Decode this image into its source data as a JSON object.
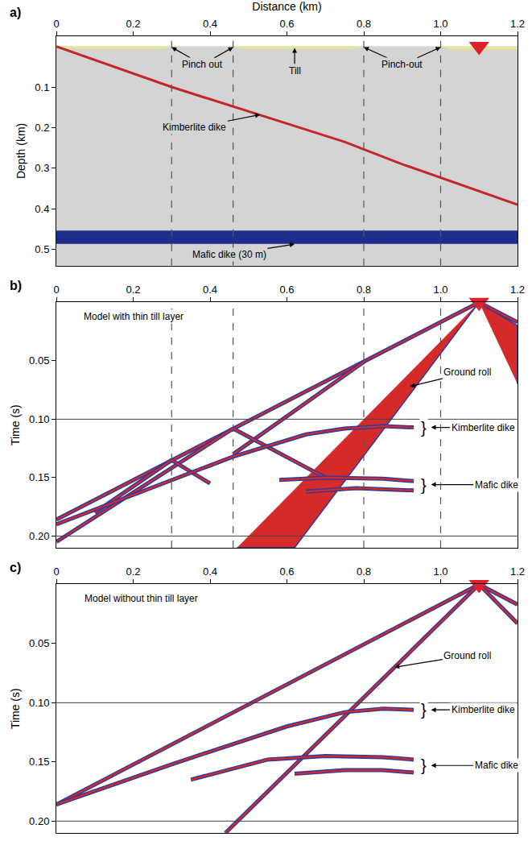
{
  "chart_data": [
    {
      "type": "line",
      "panel_label": "a)",
      "xlabel": "Distance (km)",
      "ylabel": "Depth (km)",
      "xlim": [
        0,
        1.2
      ],
      "xticks": [
        0,
        0.2,
        0.4,
        0.6,
        0.8,
        {
          "value": 1,
          "label": "1.0"
        },
        1.2
      ],
      "ylim": [
        0.54,
        -0.025
      ],
      "yticks": [
        0.1,
        0.2,
        0.3,
        0.4,
        0.5
      ],
      "grid": false,
      "surface": 0,
      "vlines": [
        0.3,
        0.46,
        0.8,
        1.0
      ],
      "series": [
        {
          "type": "area",
          "color": "#e6e39b",
          "x": [
            0,
            0.02,
            0.28,
            0.3,
            0.46,
            0.48,
            0.78,
            0.8,
            1.0,
            1.03,
            1.2
          ],
          "values": [
            0.004,
            0.006,
            0.006,
            0,
            0,
            0.006,
            0.006,
            0,
            0,
            0.008,
            0.008
          ]
        },
        {
          "type": "line",
          "line_style": "solid",
          "color": "#c4262e",
          "x": [
            0,
            0.3,
            0.6,
            0.75,
            0.9,
            1.2
          ],
          "values": [
            0,
            0.1,
            0.19,
            0.235,
            0.29,
            0.39
          ]
        },
        {
          "type": "polygon",
          "color": "#1f2d8a",
          "x": [
            0,
            1.2,
            1.2,
            0
          ],
          "values": [
            0.455,
            0.455,
            0.485,
            0.485
          ]
        },
        {
          "type": "scatter",
          "marker": "triangle-down",
          "color": "#e0202a",
          "x": [
            1.1
          ],
          "values": [
            0
          ]
        }
      ],
      "annotations": [
        {
          "text": "Pinch out",
          "x": 0.38,
          "y": 0.045,
          "arrows": [
            [
              0.3,
              0.002
            ],
            [
              0.46,
              0.002
            ]
          ]
        },
        {
          "text": "Till",
          "x": 0.62,
          "y": 0.06,
          "arrows": [
            [
              0.62,
              0.004
            ]
          ]
        },
        {
          "text": "Pinch-out",
          "x": 0.9,
          "y": 0.045,
          "arrows": [
            [
              0.8,
              0.002
            ],
            [
              1.0,
              0.002
            ]
          ]
        },
        {
          "text": "Kimberlite dike",
          "x": 0.36,
          "y": 0.2,
          "arrows": [
            [
              0.53,
              0.168
            ]
          ]
        },
        {
          "text": "Mafic dike (30 m)",
          "x": 0.45,
          "y": 0.512,
          "arrows": [
            [
              0.62,
              0.487
            ]
          ]
        }
      ]
    },
    {
      "type": "line",
      "panel_label": "b)",
      "ylabel": "Time (s)",
      "xlim": [
        0,
        1.2
      ],
      "xticks": [
        0,
        0.2,
        0.4,
        0.6,
        0.8,
        {
          "value": 1,
          "label": "1.0"
        },
        1.2
      ],
      "ylim": [
        0.21,
        0
      ],
      "yticks": [
        0.05,
        {
          "value": 0.1,
          "label": "0.10"
        },
        0.15,
        {
          "value": 0.2,
          "label": "0.20"
        }
      ],
      "grid": false,
      "vlines": [
        0.3,
        0.46,
        0.8,
        1.0
      ],
      "hlines": [
        0.1,
        0.2
      ],
      "series": [
        {
          "type": "polygon",
          "line_style": "wiggle",
          "color": "#d42a2a",
          "x": [
            1.1,
            0.62,
            0.47
          ],
          "values": [
            0,
            0.21,
            0.21
          ]
        },
        {
          "type": "polygon",
          "line_style": "wiggle",
          "color": "#d42a2a",
          "x": [
            1.1,
            1.2,
            1.2
          ],
          "values": [
            0,
            0.02,
            0.07
          ]
        },
        {
          "type": "line",
          "line_style": "wiggle",
          "color": "#d42a2a",
          "x": [
            1.1,
            0.46,
            0.3,
            0
          ],
          "values": [
            0,
            0.108,
            0.135,
            0.186
          ]
        },
        {
          "type": "line",
          "line_style": "wiggle",
          "color": "#d42a2a",
          "x": [
            1.1,
            1.2
          ],
          "values": [
            0,
            0.017
          ]
        },
        {
          "type": "line",
          "line_style": "wiggle",
          "color": "#d42a2a",
          "x": [
            0.8,
            0.46
          ],
          "values": [
            0.051,
            0.13
          ]
        },
        {
          "type": "line",
          "line_style": "wiggle",
          "color": "#d42a2a",
          "x": [
            0.46,
            0.7
          ],
          "values": [
            0.108,
            0.15
          ]
        },
        {
          "type": "line",
          "line_style": "wiggle",
          "color": "#d42a2a",
          "x": [
            0.46,
            0.0
          ],
          "values": [
            0.108,
            0.205
          ]
        },
        {
          "type": "line",
          "line_style": "wiggle",
          "color": "#d42a2a",
          "x": [
            0.3,
            0.1
          ],
          "values": [
            0.135,
            0.18
          ]
        },
        {
          "type": "line",
          "line_style": "wiggle",
          "color": "#d42a2a",
          "x": [
            0.3,
            0.4
          ],
          "values": [
            0.135,
            0.155
          ]
        },
        {
          "type": "line",
          "line_style": "wiggle",
          "color": "#d42a2a",
          "x": [
            0,
            0.3,
            0.46,
            0.65,
            0.75,
            0.85,
            0.93
          ],
          "values": [
            0.19,
            0.152,
            0.132,
            0.113,
            0.108,
            0.106,
            0.107
          ]
        },
        {
          "type": "line",
          "line_style": "wiggle",
          "color": "#d42a2a",
          "x": [
            0.58,
            0.7,
            0.85,
            0.93
          ],
          "values": [
            0.152,
            0.15,
            0.151,
            0.153
          ]
        },
        {
          "type": "line",
          "line_style": "wiggle",
          "color": "#d42a2a",
          "x": [
            0.65,
            0.78,
            0.93
          ],
          "values": [
            0.162,
            0.159,
            0.161
          ]
        },
        {
          "type": "scatter",
          "marker": "triangle-down",
          "color": "#e0202a",
          "x": [
            1.1
          ],
          "values": [
            0
          ]
        }
      ],
      "annotations": [
        {
          "text": "Model with thin till layer",
          "x": 0.2,
          "y": 0.012
        },
        {
          "text": "Ground roll",
          "x": 1.07,
          "y": 0.06,
          "arrows": [
            [
              0.92,
              0.072
            ]
          ]
        },
        {
          "text": "}",
          "x": 0.955,
          "y": 0.107
        },
        {
          "text": "Kimberlite dike",
          "x": 1.11,
          "y": 0.107,
          "arrows": [
            [
              0.975,
              0.107
            ]
          ]
        },
        {
          "text": "}",
          "x": 0.955,
          "y": 0.156
        },
        {
          "text": "Mafic dike",
          "x": 1.145,
          "y": 0.156,
          "arrows": [
            [
              0.975,
              0.156
            ]
          ]
        }
      ]
    },
    {
      "type": "line",
      "panel_label": "c)",
      "ylabel": "Time (s)",
      "xlim": [
        0,
        1.2
      ],
      "xticks": [
        0,
        0.2,
        0.4,
        0.6,
        0.8,
        {
          "value": 1,
          "label": "1.0"
        },
        1.2
      ],
      "ylim": [
        0.21,
        0
      ],
      "yticks": [
        0.05,
        {
          "value": 0.1,
          "label": "0.10"
        },
        0.15,
        {
          "value": 0.2,
          "label": "0.20"
        }
      ],
      "grid": false,
      "hlines": [
        0.1,
        0.2
      ],
      "series": [
        {
          "type": "line",
          "line_style": "wiggle",
          "color": "#d42a2a",
          "x": [
            1.1,
            0
          ],
          "values": [
            0,
            0.186
          ]
        },
        {
          "type": "line",
          "line_style": "wiggle",
          "color": "#d42a2a",
          "x": [
            1.1,
            1.2
          ],
          "values": [
            0,
            0.017
          ]
        },
        {
          "type": "line",
          "line_style": "wiggle",
          "color": "#d42a2a",
          "x": [
            1.1,
            0.44
          ],
          "values": [
            0,
            0.21
          ]
        },
        {
          "type": "line",
          "line_style": "wiggle",
          "color": "#d42a2a",
          "x": [
            1.1,
            1.2
          ],
          "values": [
            0,
            0.033
          ]
        },
        {
          "type": "line",
          "line_style": "wiggle",
          "color": "#d42a2a",
          "x": [
            0,
            0.3,
            0.6,
            0.75,
            0.85,
            0.93
          ],
          "values": [
            0.186,
            0.152,
            0.12,
            0.108,
            0.105,
            0.106
          ]
        },
        {
          "type": "line",
          "line_style": "wiggle",
          "color": "#d42a2a",
          "x": [
            0.35,
            0.55,
            0.7,
            0.85,
            0.93
          ],
          "values": [
            0.165,
            0.148,
            0.145,
            0.146,
            0.148
          ]
        },
        {
          "type": "line",
          "line_style": "wiggle",
          "color": "#d42a2a",
          "x": [
            0.62,
            0.75,
            0.85,
            0.93
          ],
          "values": [
            0.16,
            0.157,
            0.157,
            0.159
          ]
        },
        {
          "type": "scatter",
          "marker": "triangle-down",
          "color": "#e0202a",
          "x": [
            1.1
          ],
          "values": [
            0
          ]
        }
      ],
      "annotations": [
        {
          "text": "Model without thin till layer",
          "x": 0.22,
          "y": 0.012
        },
        {
          "text": "Ground roll",
          "x": 1.07,
          "y": 0.06,
          "arrows": [
            [
              0.88,
              0.07
            ]
          ]
        },
        {
          "text": "}",
          "x": 0.955,
          "y": 0.106
        },
        {
          "text": "Kimberlite dike",
          "x": 1.11,
          "y": 0.106,
          "arrows": [
            [
              0.975,
              0.106
            ]
          ]
        },
        {
          "text": "}",
          "x": 0.955,
          "y": 0.153
        },
        {
          "text": "Mafic dike",
          "x": 1.145,
          "y": 0.153,
          "arrows": [
            [
              0.975,
              0.153
            ]
          ]
        }
      ]
    }
  ]
}
